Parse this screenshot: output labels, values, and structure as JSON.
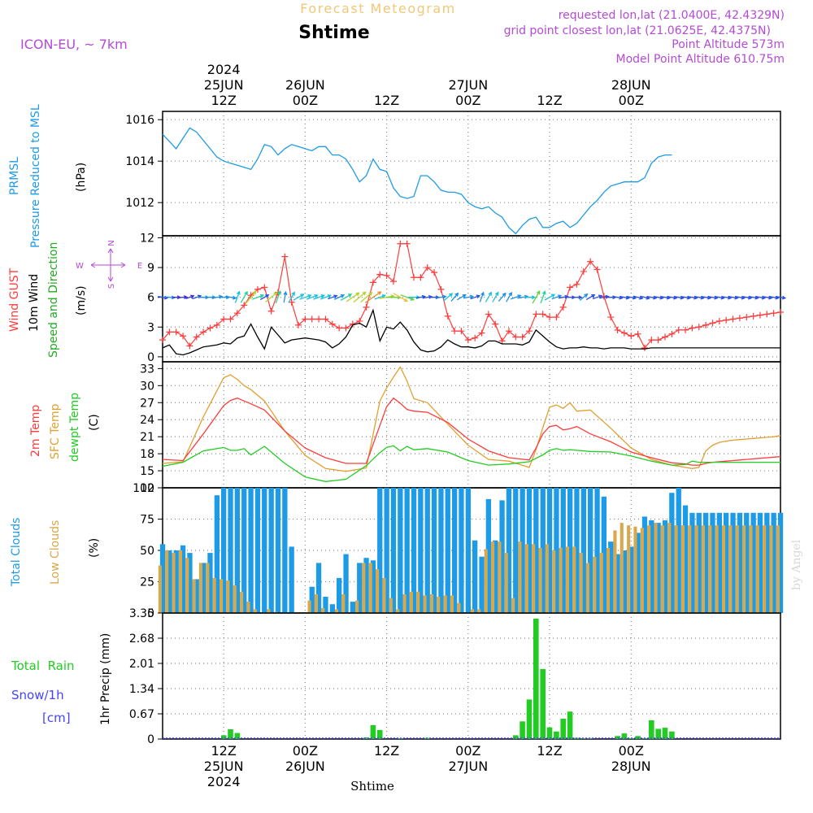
{
  "header": {
    "supertitle": "Forecast Meteogram",
    "title": "Shtime",
    "model": "ICON-EU, ~ 7km",
    "requested": "requested lon,lat (21.0400E, 42.4329N)",
    "gridpoint": "grid point closest lon,lat (21.0625E, 42.4375N)",
    "point_altitude": "Point Altitude 573m",
    "model_altitude": "Model Point Altitude 610.75m",
    "footer": "Shtime",
    "credit": "by Angel"
  },
  "colors": {
    "pressure": "#1e9be6",
    "gust": "#ff3b3b",
    "wind": "#000000",
    "direction_label": "#22aa22",
    "temp": "#ff3b3b",
    "sfc": "#e0a030",
    "dewpt": "#22cc22",
    "total_clouds": "#1e9be6",
    "low_clouds": "#d9a84a",
    "rain": "#22cc22",
    "snow": "#4444ff",
    "purple": "#b44ad6",
    "grid": "#888888",
    "supertitle": "#f0c878"
  },
  "chart_data": {
    "time": {
      "type": "time-axis",
      "hour_range": [
        3,
        94
      ],
      "top_ticks": [
        {
          "hour": 12,
          "lines": [
            "2024",
            "25JUN",
            "12Z"
          ]
        },
        {
          "hour": 24,
          "lines": [
            "26JUN",
            "00Z"
          ]
        },
        {
          "hour": 36,
          "lines": [
            "12Z"
          ]
        },
        {
          "hour": 48,
          "lines": [
            "27JUN",
            "00Z"
          ]
        },
        {
          "hour": 60,
          "lines": [
            "12Z"
          ]
        },
        {
          "hour": 72,
          "lines": [
            "28JUN",
            "00Z"
          ]
        }
      ],
      "bottom_ticks": [
        {
          "hour": 12,
          "lines": [
            "12Z",
            "25JUN",
            "2024"
          ]
        },
        {
          "hour": 24,
          "lines": [
            "00Z",
            "26JUN"
          ]
        },
        {
          "hour": 36,
          "lines": [
            "12Z"
          ]
        },
        {
          "hour": 48,
          "lines": [
            "00Z",
            "27JUN"
          ]
        },
        {
          "hour": 60,
          "lines": [
            "12Z"
          ]
        },
        {
          "hour": 72,
          "lines": [
            "00Z",
            "28JUN"
          ]
        }
      ]
    },
    "pressure": {
      "type": "line",
      "name": "PRMSL",
      "label_lines": [
        "PRMSL",
        "Pressure Reduced to MSL"
      ],
      "unit": "(hPa)",
      "ylim": [
        1010.4,
        1016.4
      ],
      "yticks": [
        1012,
        1014,
        1016
      ],
      "hours": [
        3,
        5,
        7,
        8,
        10,
        11,
        12,
        13,
        14,
        15,
        16,
        17,
        18,
        19,
        20,
        21,
        22,
        23,
        24,
        25,
        26,
        27,
        28,
        29,
        30,
        31,
        32,
        33,
        34,
        35,
        36,
        37,
        38,
        39,
        40,
        41,
        42,
        43,
        44,
        45,
        46,
        47,
        48,
        49,
        50,
        51,
        52,
        53,
        54,
        55,
        56,
        57,
        58,
        59,
        60,
        61,
        62,
        63,
        64,
        65,
        66,
        67,
        68,
        69,
        70,
        71,
        72,
        73,
        74,
        75,
        76,
        77,
        78
      ],
      "values": [
        1015.3,
        1014.6,
        1015.6,
        1015.4,
        1014.6,
        1014.2,
        1014.0,
        1013.9,
        1013.8,
        1013.7,
        1013.6,
        1014.1,
        1014.8,
        1014.7,
        1014.3,
        1014.6,
        1014.8,
        1014.7,
        1014.6,
        1014.5,
        1014.7,
        1014.7,
        1014.3,
        1014.3,
        1014.1,
        1013.6,
        1013.0,
        1013.3,
        1014.1,
        1013.6,
        1013.5,
        1012.7,
        1012.3,
        1012.2,
        1012.3,
        1013.3,
        1013.3,
        1013.0,
        1012.6,
        1012.5,
        1012.5,
        1012.4,
        1012.0,
        1011.8,
        1011.7,
        1011.8,
        1011.5,
        1011.3,
        1010.8,
        1010.5,
        1010.9,
        1011.2,
        1011.3,
        1010.8,
        1010.8,
        1011.0,
        1011.1,
        1010.8,
        1011.0,
        1011.4,
        1011.8,
        1012.1,
        1012.5,
        1012.8,
        1012.9,
        1013.0,
        1013.0,
        1013.0,
        1013.2,
        1013.9,
        1014.2,
        1014.3,
        1014.3
      ]
    },
    "wind": {
      "type": "line",
      "label_lines": [
        "Wind GUST",
        "10m Wind",
        "Speed and Direction"
      ],
      "unit": "(m/s)",
      "ylim": [
        -0.5,
        12.2
      ],
      "yticks": [
        0,
        3,
        6,
        9,
        12
      ],
      "compass": {
        "n": "N",
        "s": "S",
        "w": "W",
        "e": "E"
      },
      "hours": [
        3,
        4,
        5,
        6,
        7,
        8,
        9,
        10,
        11,
        12,
        13,
        14,
        15,
        16,
        17,
        18,
        19,
        20,
        21,
        22,
        23,
        24,
        25,
        26,
        27,
        28,
        29,
        30,
        31,
        32,
        33,
        34,
        35,
        36,
        37,
        38,
        39,
        40,
        41,
        42,
        43,
        44,
        45,
        46,
        47,
        48,
        49,
        50,
        51,
        52,
        53,
        54,
        55,
        56,
        57,
        58,
        59,
        60,
        61,
        62,
        63,
        64,
        65,
        66,
        67,
        68,
        69,
        70,
        71,
        72,
        73,
        74,
        75,
        76,
        77,
        78,
        79,
        80,
        81,
        82,
        83,
        84,
        85,
        86,
        87,
        88,
        89,
        90,
        91,
        92,
        93,
        94
      ],
      "gust": [
        1.7,
        2.5,
        2.5,
        2.1,
        1.1,
        2.0,
        2.5,
        2.9,
        3.2,
        3.8,
        3.8,
        4.4,
        5.2,
        6.2,
        6.8,
        7.0,
        4.6,
        6.5,
        10.1,
        5.5,
        3.2,
        3.8,
        3.8,
        3.8,
        3.8,
        3.3,
        2.9,
        2.9,
        3.3,
        3.6,
        5.0,
        7.5,
        8.3,
        8.2,
        7.6,
        11.4,
        11.4,
        8.0,
        8.0,
        9.0,
        8.5,
        6.8,
        4.1,
        2.6,
        2.6,
        1.7,
        1.9,
        2.4,
        4.3,
        3.3,
        1.6,
        2.6,
        2.0,
        2.0,
        2.6,
        4.3,
        4.3,
        4.0,
        4.0,
        5.0,
        7.0,
        7.3,
        8.6,
        9.6,
        8.8,
        6.1,
        4.0,
        2.7,
        2.4,
        2.1,
        2.3,
        0.9,
        1.7,
        1.7,
        2.0,
        2.3,
        2.7,
        2.7,
        2.9,
        3.0,
        3.2,
        3.4,
        3.6,
        3.7,
        3.8,
        3.9,
        4.0,
        4.1,
        4.2,
        4.3,
        4.4,
        4.5
      ],
      "speed": [
        0.9,
        1.2,
        0.3,
        0.2,
        0.4,
        0.7,
        1.0,
        1.1,
        1.2,
        1.4,
        1.3,
        1.9,
        2.1,
        3.3,
        2.0,
        0.8,
        3.0,
        2.2,
        1.4,
        1.7,
        1.8,
        1.9,
        1.8,
        1.7,
        1.5,
        0.9,
        1.3,
        2.0,
        3.2,
        3.4,
        3.0,
        4.7,
        1.6,
        3.0,
        2.8,
        3.5,
        2.7,
        1.5,
        0.7,
        0.5,
        0.6,
        1.0,
        1.7,
        1.3,
        1.0,
        1.0,
        0.9,
        1.1,
        1.6,
        1.6,
        1.3,
        1.3,
        1.3,
        1.2,
        1.5,
        2.7,
        2.1,
        1.5,
        1.0,
        0.8,
        0.9,
        0.9,
        1.0,
        0.9,
        0.9,
        0.8,
        0.9,
        0.9,
        0.9,
        0.8,
        0.8,
        0.8,
        0.9,
        0.9,
        0.9,
        0.9,
        0.9,
        0.9,
        0.9,
        0.9,
        0.9,
        0.9,
        0.9,
        0.9,
        0.9,
        0.9,
        0.9,
        0.9,
        0.9,
        0.9,
        0.9,
        0.9
      ],
      "direction_from_deg": [
        280,
        275,
        270,
        265,
        250,
        250,
        270,
        270,
        260,
        270,
        280,
        200,
        210,
        220,
        250,
        240,
        230,
        200,
        190,
        210,
        240,
        250,
        250,
        250,
        250,
        250,
        245,
        240,
        235,
        230,
        230,
        235,
        250,
        260,
        270,
        300,
        290,
        270,
        260,
        260,
        270,
        260,
        230,
        220,
        240,
        260,
        250,
        200,
        210,
        210,
        220,
        210,
        250,
        260,
        270,
        210,
        200,
        240,
        250,
        260,
        270,
        270,
        230,
        240,
        250,
        260,
        270,
        280,
        280,
        280,
        285,
        285,
        280,
        280,
        280,
        280,
        280,
        280,
        280,
        280,
        280,
        280,
        280,
        280,
        280,
        280,
        280,
        280,
        280,
        280,
        280,
        280
      ]
    },
    "temperature": {
      "type": "line",
      "label_lines": [
        "2m Temp",
        "SFC Temp",
        "dewpt Temp"
      ],
      "unit": "(C)",
      "ylim": [
        12,
        34.2
      ],
      "yticks": [
        12,
        15,
        18,
        21,
        24,
        27,
        30,
        33
      ],
      "hours": [
        3,
        6,
        9,
        12,
        13,
        14,
        15,
        16,
        18,
        21,
        24,
        27,
        30,
        33,
        35,
        36,
        37,
        38,
        39,
        40,
        42,
        45,
        48,
        51,
        54,
        57,
        58,
        59,
        60,
        61,
        62,
        63,
        64,
        66,
        69,
        72,
        75,
        78,
        80,
        81,
        82,
        83,
        84,
        85,
        86,
        87,
        88,
        89,
        90,
        91,
        92,
        93,
        94
      ],
      "temp_2m": [
        17.0,
        16.8,
        21.5,
        26.5,
        27.4,
        27.8,
        27.3,
        26.8,
        25.7,
        22.0,
        19.0,
        17.3,
        16.3,
        16.3,
        23.0,
        26.3,
        27.8,
        26.9,
        25.8,
        25.5,
        25.3,
        23.5,
        20.6,
        18.5,
        17.3,
        16.9,
        19.0,
        21.5,
        22.8,
        23.0,
        22.2,
        22.4,
        22.8,
        21.5,
        20.1,
        18.3,
        17.3,
        16.4,
        16.2,
        16.0,
        16.0,
        16.3,
        16.5,
        16.6,
        16.7,
        16.8,
        16.9,
        17.0,
        17.1,
        17.2,
        17.3,
        17.4,
        17.5
      ],
      "temp_sfc": [
        16.3,
        16.6,
        24.5,
        31.4,
        31.9,
        31.1,
        30.0,
        29.3,
        27.3,
        22.0,
        17.7,
        15.4,
        14.9,
        15.5,
        27.3,
        29.6,
        31.5,
        33.3,
        30.8,
        27.7,
        27.0,
        23.2,
        19.5,
        17.0,
        16.7,
        15.6,
        18.7,
        22.6,
        26.2,
        26.6,
        26.0,
        27.0,
        25.5,
        25.7,
        22.5,
        19.0,
        17.0,
        16.0,
        15.6,
        15.4,
        15.6,
        18.5,
        19.5,
        20.0,
        20.2,
        20.4,
        20.5,
        20.6,
        20.7,
        20.8,
        20.9,
        21.0,
        21.2
      ],
      "dewpt": [
        15.8,
        16.5,
        18.5,
        19.1,
        18.6,
        18.6,
        18.9,
        17.8,
        19.3,
        16.3,
        13.9,
        13.1,
        13.5,
        15.9,
        18.2,
        19.1,
        19.4,
        18.5,
        19.3,
        18.7,
        18.9,
        18.3,
        16.8,
        16.0,
        16.2,
        16.6,
        17.2,
        17.8,
        18.6,
        18.9,
        18.6,
        18.7,
        18.6,
        18.4,
        18.3,
        17.6,
        16.7,
        16.0,
        16.1,
        16.7,
        16.5,
        16.5,
        16.5,
        16.5,
        16.5,
        16.5,
        16.5,
        16.5,
        16.5,
        16.5,
        16.5,
        16.5,
        16.5
      ]
    },
    "clouds": {
      "type": "bar",
      "label_lines": [
        "Total Clouds",
        "Low Clouds"
      ],
      "unit": "(%)",
      "ylim": [
        0,
        100
      ],
      "yticks": [
        0,
        25,
        50,
        75,
        100
      ],
      "hours": [
        3,
        4,
        5,
        6,
        7,
        8,
        9,
        10,
        11,
        12,
        13,
        14,
        15,
        16,
        17,
        18,
        19,
        20,
        21,
        22,
        23,
        24,
        25,
        26,
        27,
        28,
        29,
        30,
        31,
        32,
        33,
        34,
        35,
        36,
        37,
        38,
        39,
        40,
        41,
        42,
        43,
        44,
        45,
        46,
        47,
        48,
        49,
        50,
        51,
        52,
        53,
        54,
        55,
        56,
        57,
        58,
        59,
        60,
        61,
        62,
        63,
        64,
        65,
        66,
        67,
        68,
        69,
        70,
        71,
        72,
        73,
        74,
        75,
        76,
        77,
        78,
        79,
        80,
        81,
        82,
        83,
        84,
        85,
        86,
        87,
        88,
        89,
        90,
        91,
        92,
        93,
        94
      ],
      "total": [
        55,
        50,
        50,
        54,
        48,
        27,
        40,
        48,
        94,
        100,
        100,
        100,
        100,
        100,
        100,
        100,
        100,
        100,
        100,
        53,
        0,
        0,
        21,
        40,
        13,
        7,
        28,
        47,
        9,
        40,
        44,
        42,
        100,
        100,
        100,
        100,
        100,
        100,
        100,
        100,
        100,
        100,
        100,
        100,
        100,
        100,
        58,
        45,
        91,
        58,
        90,
        100,
        100,
        100,
        100,
        100,
        100,
        100,
        100,
        100,
        100,
        100,
        100,
        100,
        100,
        93,
        57,
        47,
        50,
        53,
        64,
        77,
        74,
        72,
        74,
        96,
        100,
        86,
        80,
        80,
        80,
        80,
        80,
        80,
        80,
        80,
        80,
        80,
        80,
        80,
        80,
        80
      ],
      "low": [
        38,
        50,
        48,
        50,
        44,
        27,
        40,
        40,
        28,
        27,
        26,
        22,
        17,
        9,
        3,
        0,
        3,
        1,
        0,
        0,
        0,
        0,
        10,
        15,
        4,
        0,
        3,
        15,
        0,
        10,
        40,
        40,
        35,
        28,
        12,
        3,
        15,
        17,
        17,
        14,
        15,
        13,
        14,
        14,
        8,
        0,
        3,
        3,
        51,
        57,
        57,
        48,
        12,
        57,
        55,
        55,
        52,
        55,
        50,
        52,
        53,
        53,
        48,
        40,
        45,
        48,
        52,
        66,
        72,
        70,
        69,
        68,
        70,
        72,
        70,
        72,
        70,
        70,
        70,
        70,
        70,
        70,
        70,
        70,
        70,
        70,
        70,
        70,
        70,
        70,
        70,
        70
      ]
    },
    "precip": {
      "type": "bar",
      "label_lines": [
        "Total  Rain",
        "Snow/1h",
        "[cm]"
      ],
      "axis_label": "1hr Precip (mm)",
      "ylim": [
        0,
        3.35
      ],
      "yticks": [
        0,
        0.67,
        1.34,
        2.01,
        2.68,
        3.35
      ],
      "ytick_labels": [
        "0",
        "0.67",
        "1.34",
        "2.01",
        "2.68",
        "3.35"
      ],
      "hours": [
        12,
        13,
        14,
        33,
        34,
        35,
        38,
        42,
        55,
        56,
        57,
        58,
        59,
        60,
        61,
        62,
        63,
        64,
        65,
        66,
        70,
        71,
        72,
        73,
        74,
        75,
        76,
        77,
        78
      ],
      "rain": [
        0.1,
        0.26,
        0.16,
        0.04,
        0.37,
        0.24,
        0.02,
        0.03,
        0.1,
        0.47,
        1.05,
        3.2,
        1.86,
        0.31,
        0.2,
        0.54,
        0.73,
        0.03,
        0.01,
        0.01,
        0.08,
        0.15,
        0.02,
        0.08,
        0.01,
        0.5,
        0.27,
        0.3,
        0.2
      ]
    }
  }
}
